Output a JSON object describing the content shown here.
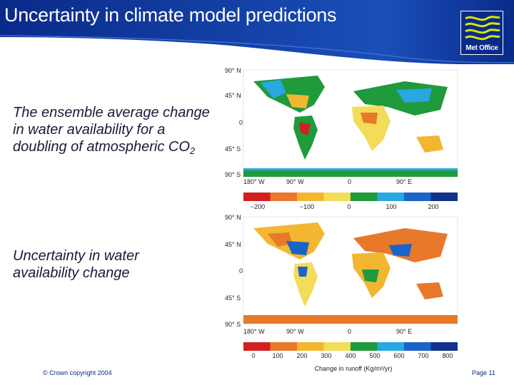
{
  "slide": {
    "title": "Uncertainty in climate model predictions",
    "logo_text": "Met Office",
    "caption_ensemble_main": "The ensemble average change in water availability for a doubling of atmospheric CO",
    "caption_ensemble_sub": "2",
    "caption_uncertainty": "Uncertainty in water availability change",
    "copyright": "© Crown copyright 2004",
    "page": "Page 11"
  },
  "map1": {
    "lat_labels": [
      "90° N",
      "45° N",
      "0",
      "45° S",
      "90° S"
    ],
    "lon_labels": [
      "180° W",
      "90° W",
      "0",
      "90° E"
    ],
    "colorbar_ticks": [
      "−200",
      "−100",
      "0",
      "100",
      "200"
    ],
    "colorbar_colors": [
      "#d22020",
      "#e8782a",
      "#f2b630",
      "#f3dc5a",
      "#1f9a3c",
      "#28a8e0",
      "#1a64c8",
      "#10328a"
    ]
  },
  "map2": {
    "lat_labels": [
      "90° N",
      "45° N",
      "0",
      "45° S",
      "90° S"
    ],
    "lon_labels": [
      "180° W",
      "90° W",
      "0",
      "90° E"
    ],
    "colorbar_ticks": [
      "0",
      "100",
      "200",
      "300",
      "400",
      "500",
      "600",
      "700",
      "800"
    ],
    "colorbar_colors": [
      "#d22020",
      "#e8782a",
      "#f2b630",
      "#f3dc5a",
      "#1f9a3c",
      "#28a8e0",
      "#1a64c8",
      "#10328a"
    ],
    "colorbar_label": "Change in runoff (Kg/m²/yr)"
  }
}
